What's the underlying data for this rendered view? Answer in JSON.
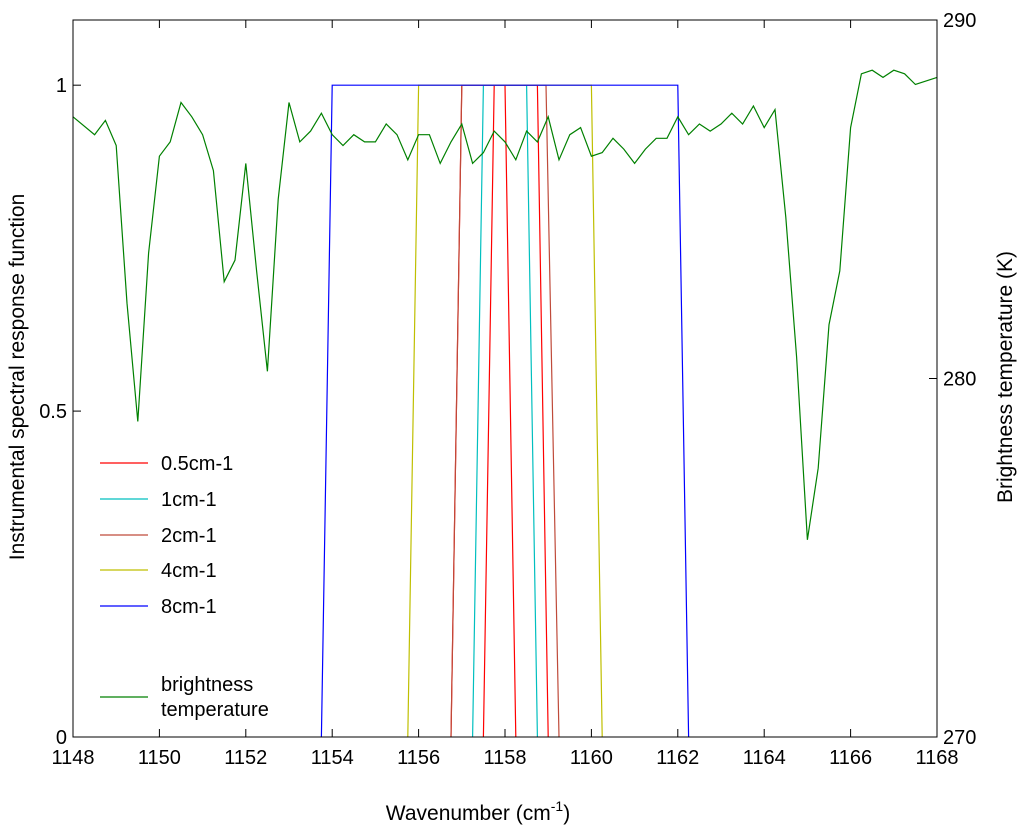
{
  "chart_data": {
    "type": "line",
    "title": "",
    "xlabel_main": "Wavenumber (cm",
    "xlabel_sup": "-1",
    "xlabel_close": ")",
    "ylabel_left": "Instrumental spectral response function",
    "ylabel_right": "Brightness temperature (K)",
    "xlim": [
      1148,
      1168
    ],
    "ylim_left": [
      0,
      1.1
    ],
    "ylim_right": [
      270,
      290
    ],
    "xticks": [
      "1148",
      "1150",
      "1152",
      "1154",
      "1156",
      "1158",
      "1160",
      "1162",
      "1164",
      "1166",
      "1168"
    ],
    "yticks_left": [
      "0",
      "0.5",
      "1"
    ],
    "yticks_right": [
      "270",
      "280",
      "290"
    ],
    "grid": false,
    "legend_position": "left",
    "series": [
      {
        "name": "0.5cm-1",
        "color": "#ff0000",
        "axis": "left",
        "x": [
          1156.75,
          1157.0,
          1158.0,
          1158.25
        ],
        "y": [
          0,
          1,
          1,
          0
        ],
        "x2": [
          1157.5,
          1157.75,
          1158.75,
          1159.0
        ],
        "y2": [
          0,
          1,
          1,
          0
        ]
      },
      {
        "name": "1cm-1",
        "color": "#00bfbf",
        "axis": "left",
        "x": [
          1157.25,
          1157.5,
          1158.5,
          1158.75
        ],
        "y": [
          0,
          1,
          1,
          0
        ]
      },
      {
        "name": "2cm-1",
        "color": "#bf4a3a",
        "axis": "left",
        "x": [
          1156.75,
          1157.0,
          1158.95,
          1159.25
        ],
        "y": [
          0,
          1,
          1,
          0
        ]
      },
      {
        "name": "4cm-1",
        "color": "#bfbf00",
        "axis": "left",
        "x": [
          1155.75,
          1156.0,
          1160.0,
          1160.25
        ],
        "y": [
          0,
          1,
          1,
          0
        ]
      },
      {
        "name": "8cm-1",
        "color": "#0000ff",
        "axis": "left",
        "x": [
          1153.75,
          1154.0,
          1162.0,
          1162.25
        ],
        "y": [
          0,
          1,
          1,
          0
        ]
      },
      {
        "name": "brightness\ntemperature",
        "name_lines": [
          "brightness",
          "temperature"
        ],
        "color": "#008000",
        "axis": "right",
        "x": [
          1148.0,
          1148.5,
          1148.75,
          1149.0,
          1149.25,
          1149.5,
          1149.75,
          1150.0,
          1150.25,
          1150.5,
          1150.75,
          1151.0,
          1151.25,
          1151.5,
          1151.75,
          1152.0,
          1152.25,
          1152.5,
          1152.75,
          1153.0,
          1153.25,
          1153.5,
          1153.75,
          1154.0,
          1154.25,
          1154.5,
          1154.75,
          1155.0,
          1155.25,
          1155.5,
          1155.75,
          1156.0,
          1156.25,
          1156.5,
          1156.75,
          1157.0,
          1157.25,
          1157.5,
          1157.75,
          1158.0,
          1158.25,
          1158.5,
          1158.75,
          1159.0,
          1159.25,
          1159.5,
          1159.75,
          1160.0,
          1160.25,
          1160.5,
          1160.75,
          1161.0,
          1161.25,
          1161.5,
          1161.75,
          1162.0,
          1162.25,
          1162.5,
          1162.75,
          1163.0,
          1163.25,
          1163.5,
          1163.75,
          1164.0,
          1164.25,
          1164.5,
          1164.75,
          1165.0,
          1165.25,
          1165.5,
          1165.75,
          1166.0,
          1166.25,
          1166.5,
          1166.75,
          1167.0,
          1167.25,
          1167.5,
          1167.75,
          1168.0
        ],
        "y": [
          287.3,
          286.8,
          287.2,
          286.5,
          282.1,
          278.8,
          283.5,
          286.2,
          286.6,
          287.7,
          287.3,
          286.8,
          285.8,
          282.7,
          283.3,
          286.0,
          283.0,
          280.2,
          285.0,
          287.7,
          286.6,
          286.9,
          287.4,
          286.8,
          286.5,
          286.8,
          286.6,
          286.6,
          287.1,
          286.8,
          286.1,
          286.8,
          286.8,
          286.0,
          286.6,
          287.1,
          286.0,
          286.3,
          286.9,
          286.6,
          286.1,
          286.9,
          286.6,
          287.3,
          286.1,
          286.8,
          287.0,
          286.2,
          286.3,
          286.7,
          286.4,
          286.0,
          286.4,
          286.7,
          286.7,
          287.3,
          286.8,
          287.1,
          286.9,
          287.1,
          287.4,
          287.1,
          287.6,
          287.0,
          287.5,
          284.5,
          280.6,
          275.5,
          277.5,
          281.5,
          283.0,
          287.0,
          288.5,
          288.6,
          288.4,
          288.6,
          288.5,
          288.2,
          288.3,
          288.4
        ]
      }
    ]
  }
}
